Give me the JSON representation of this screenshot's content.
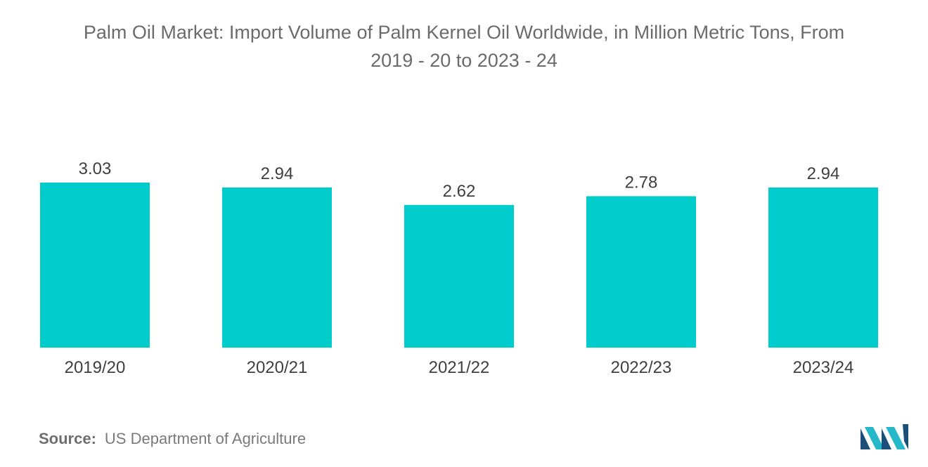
{
  "title_line1": "Palm Oil Market: Import Volume of Palm Kernel Oil Worldwide, in Million Metric Tons, From",
  "title_line2": "2019 - 20 to 2023 - 24",
  "source": {
    "label": "Source:",
    "text": "US Department of Agriculture"
  },
  "colors": {
    "bar": "#00cccc",
    "label": "#3f3f3f",
    "logo_dark": "#1b4e79",
    "logo_light": "#25b8c9"
  },
  "logo": {
    "icon": "mordor-intelligence-logo-icon"
  },
  "chart_data": {
    "type": "bar",
    "title": "Palm Oil Market: Import Volume of Palm Kernel Oil Worldwide, in Million Metric Tons, From 2019 - 20 to 2023 - 24",
    "categories": [
      "2019/20",
      "2020/21",
      "2021/22",
      "2022/23",
      "2023/24"
    ],
    "values": [
      3.03,
      2.94,
      2.62,
      2.78,
      2.94
    ],
    "value_labels": [
      "3.03",
      "2.94",
      "2.62",
      "2.78",
      "2.94"
    ],
    "xlabel": "",
    "ylabel": "",
    "ylim": [
      0,
      3.03
    ],
    "grid": false,
    "legend": "none"
  }
}
